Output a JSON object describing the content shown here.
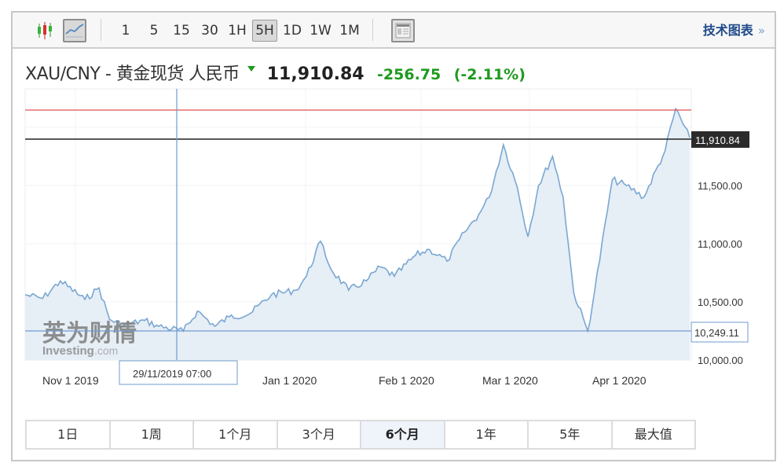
{
  "toolbar": {
    "chart_type_icons": [
      "candlestick-icon",
      "line-chart-icon"
    ],
    "intervals": [
      "1",
      "5",
      "15",
      "30",
      "1H",
      "5H",
      "1D",
      "1W",
      "1M"
    ],
    "active_interval": "5H",
    "layout_icon": "layout-icon",
    "tech_chart_link": "技术图表",
    "tech_chart_arrow": "»"
  },
  "header": {
    "instrument": "XAU/CNY - 黄金现货 人民币",
    "price": "11,910.84",
    "change": "-256.75",
    "change_pct": "(-2.11%)",
    "direction_icon": "down-triangle-icon",
    "change_color": "#1e9a1e"
  },
  "crosshair": {
    "date_label": "29/11/2019 07:00",
    "price_label": "10,249.11"
  },
  "current_price_label": "11,910.84",
  "watermark": {
    "cn": "英为财情",
    "en": "Investing",
    "suffix": ".com"
  },
  "range_buttons": [
    "1日",
    "1周",
    "1个月",
    "3个月",
    "6个月",
    "1年",
    "5年",
    "最大值"
  ],
  "active_range": "6个月",
  "colors": {
    "line": "#7aa7d2",
    "fill": "#e6eef6",
    "high_line": "#e05050",
    "current_line": "#222222",
    "crosshair": "#6f9bd0"
  },
  "chart_data": {
    "type": "area",
    "title": "XAU/CNY - 黄金现货 人民币",
    "xlabel": "",
    "ylabel": "",
    "x_tick_labels": [
      "Nov 1 2019",
      "Jan 1 2020",
      "Feb 1 2020",
      "Mar 1 2020",
      "Apr 1 2020"
    ],
    "y_tick_labels": [
      "10,000.00",
      "10,500.00",
      "11,000.00",
      "11,500.00"
    ],
    "ylim": [
      10000,
      12200
    ],
    "grid": true,
    "legend": "none",
    "reference_lines": {
      "current_price": 11910.84,
      "recent_high": 12160,
      "crosshair_price": 10249.11
    },
    "series": [
      {
        "name": "XAU/CNY",
        "x": [
          "2019-10-15",
          "2019-10-20",
          "2019-10-25",
          "2019-11-01",
          "2019-11-05",
          "2019-11-08",
          "2019-11-12",
          "2019-11-18",
          "2019-11-22",
          "2019-11-29",
          "2019-12-03",
          "2019-12-08",
          "2019-12-12",
          "2019-12-18",
          "2019-12-24",
          "2019-12-31",
          "2020-01-03",
          "2020-01-07",
          "2020-01-10",
          "2020-01-15",
          "2020-01-20",
          "2020-01-24",
          "2020-01-28",
          "2020-02-03",
          "2020-02-07",
          "2020-02-12",
          "2020-02-17",
          "2020-02-21",
          "2020-02-24",
          "2020-02-28",
          "2020-03-03",
          "2020-03-06",
          "2020-03-09",
          "2020-03-13",
          "2020-03-16",
          "2020-03-19",
          "2020-03-23",
          "2020-03-25",
          "2020-03-30",
          "2020-04-03",
          "2020-04-08",
          "2020-04-14",
          "2020-04-17",
          "2020-04-21"
        ],
        "values": [
          10560,
          10530,
          10680,
          10520,
          10620,
          10350,
          10300,
          10340,
          10290,
          10249,
          10420,
          10290,
          10370,
          10400,
          10560,
          10600,
          10720,
          11020,
          10780,
          10600,
          10680,
          10800,
          10720,
          10900,
          10950,
          10850,
          11100,
          11250,
          11400,
          11850,
          11480,
          11060,
          11500,
          11750,
          11400,
          10580,
          10249,
          10600,
          11550,
          11500,
          11400,
          11800,
          12160,
          11910
        ]
      }
    ]
  }
}
